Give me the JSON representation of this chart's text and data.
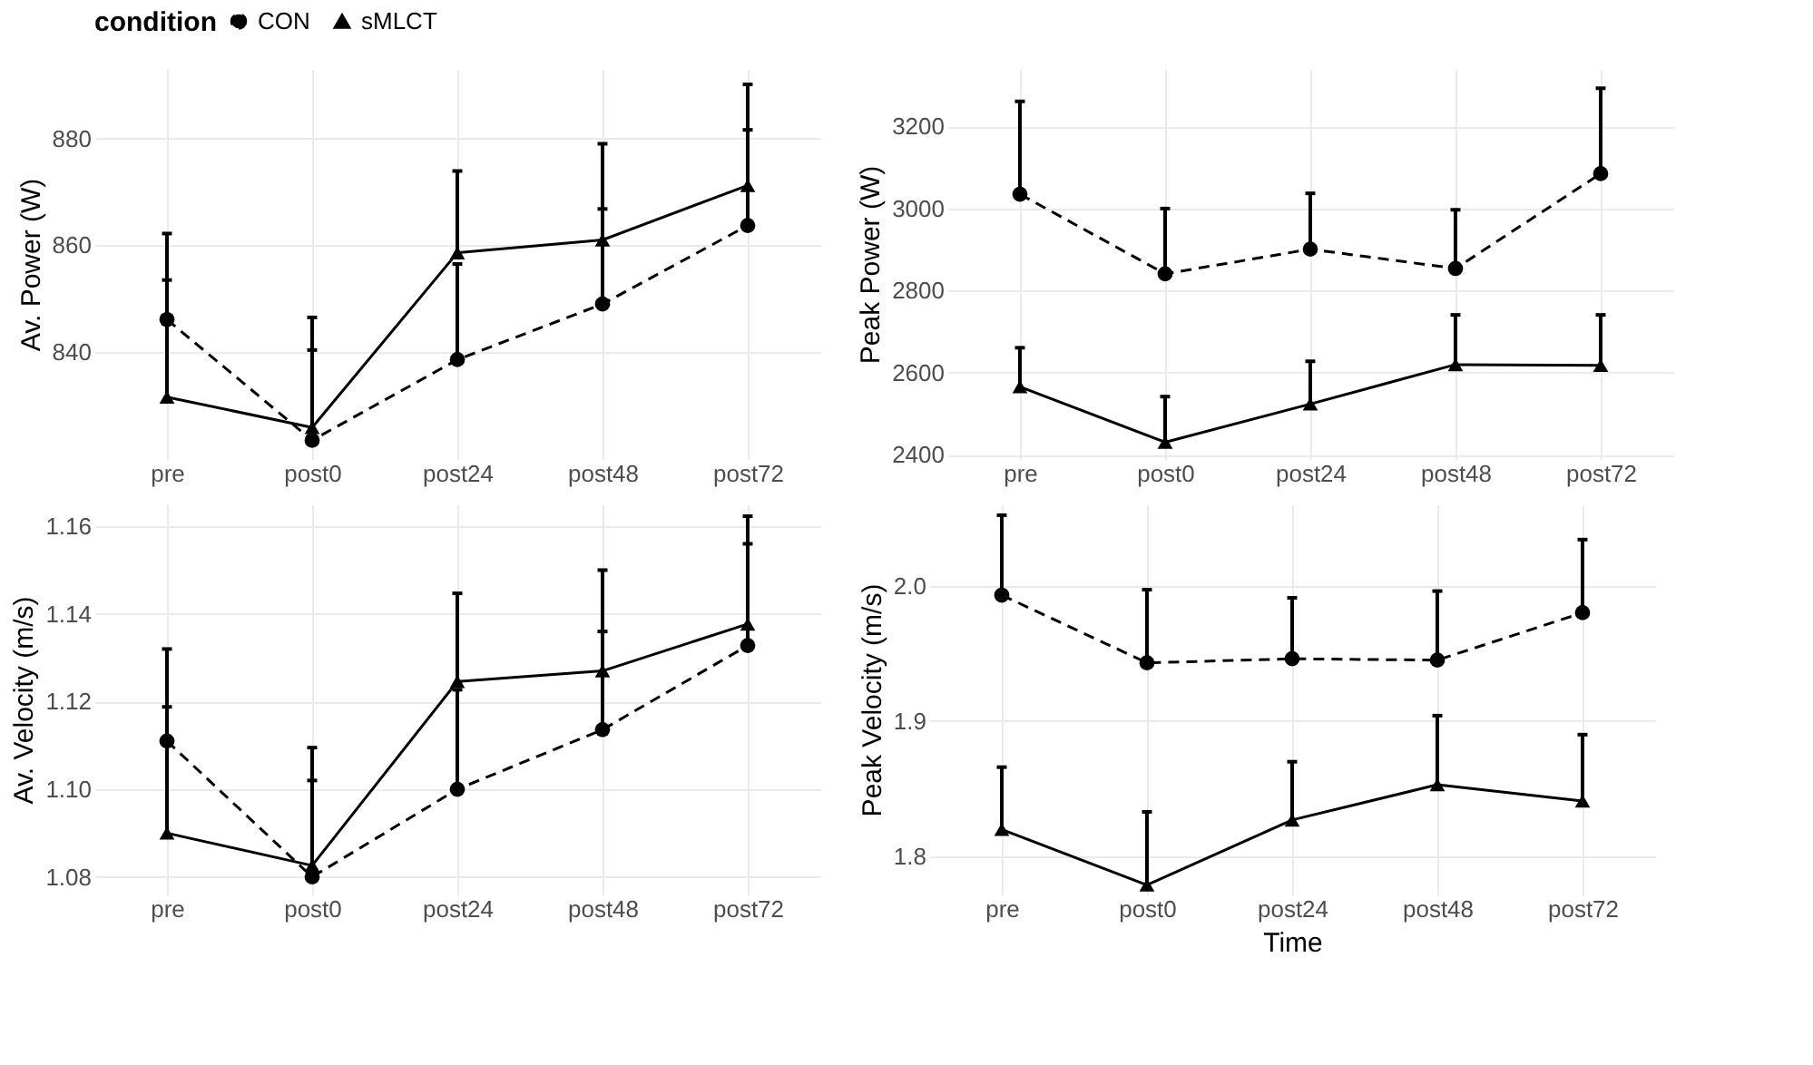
{
  "chart_data": [
    {
      "type": "line",
      "ylabel": "Av. Power (W)",
      "legend_title": "condition",
      "legend": "top",
      "grid": true,
      "categories": [
        "pre",
        "post0",
        "post24",
        "post48",
        "post72"
      ],
      "ylim": [
        820,
        893
      ],
      "yticks": [
        840,
        860,
        880
      ],
      "series": [
        {
          "name": "CON",
          "color": "#000000",
          "marker": "circle",
          "line_style": "dashed",
          "values": [
            846.1,
            823.5,
            838.6,
            849,
            863.7
          ],
          "errors": [
            [
              846.1,
              862.2
            ],
            [
              823.5,
              840.4
            ],
            [
              838.6,
              856.5
            ],
            [
              849,
              866.8
            ],
            [
              863.7,
              881.6
            ]
          ]
        },
        {
          "name": "sMLCT",
          "color": "#000000",
          "marker": "triangle",
          "line_style": "solid",
          "values": [
            831.6,
            825.9,
            858.6,
            861,
            871.2
          ],
          "errors": [
            [
              831.6,
              853.5
            ],
            [
              825.9,
              846.5
            ],
            [
              858.6,
              873.9
            ],
            [
              861,
              879
            ],
            [
              871.2,
              890.1
            ]
          ]
        }
      ]
    },
    {
      "type": "line",
      "ylabel": "Peak Power (W)",
      "grid": true,
      "categories": [
        "pre",
        "post0",
        "post24",
        "post48",
        "post72"
      ],
      "ylim": [
        2390,
        3340
      ],
      "yticks": [
        2400,
        2600,
        2800,
        3000,
        3200
      ],
      "series": [
        {
          "name": "CON",
          "color": "#000000",
          "marker": "circle",
          "line_style": "dashed",
          "values": [
            3035,
            2841,
            2901,
            2854,
            3085
          ],
          "errors": [
            [
              3035,
              3261
            ],
            [
              2841,
              3000
            ],
            [
              2901,
              3037
            ],
            [
              2854,
              2997
            ],
            [
              3085,
              3293
            ]
          ]
        },
        {
          "name": "sMLCT",
          "color": "#000000",
          "marker": "triangle",
          "line_style": "solid",
          "values": [
            2566,
            2431,
            2524,
            2620,
            2618
          ],
          "errors": [
            [
              2566,
              2661
            ],
            [
              2431,
              2542
            ],
            [
              2524,
              2628
            ],
            [
              2620,
              2741
            ],
            [
              2618,
              2741
            ]
          ]
        }
      ]
    },
    {
      "type": "line",
      "ylabel": "Av. Velocity (m/s)",
      "grid": true,
      "categories": [
        "pre",
        "post0",
        "post24",
        "post48",
        "post72"
      ],
      "ylim": [
        1.076,
        1.165
      ],
      "yticks": [
        {
          "value": 1.08,
          "label": "1.08"
        },
        {
          "value": 1.1,
          "label": "1.10"
        },
        {
          "value": 1.12,
          "label": "1.12"
        },
        {
          "value": 1.14,
          "label": "1.14"
        },
        {
          "value": 1.16,
          "label": "1.16"
        }
      ],
      "series": [
        {
          "name": "CON",
          "color": "#000000",
          "marker": "circle",
          "line_style": "dashed",
          "values": [
            1.111,
            1.08,
            1.1,
            1.1136,
            1.1328
          ],
          "errors": [
            [
              1.111,
              1.132
            ],
            [
              1.08,
              1.102
            ],
            [
              1.1,
              1.1227
            ],
            [
              1.1136,
              1.136
            ],
            [
              1.1328,
              1.156
            ]
          ]
        },
        {
          "name": "sMLCT",
          "color": "#000000",
          "marker": "triangle",
          "line_style": "solid",
          "values": [
            1.09,
            1.0826,
            1.1246,
            1.127,
            1.1377
          ],
          "errors": [
            [
              1.09,
              1.1188
            ],
            [
              1.0826,
              1.1095
            ],
            [
              1.1246,
              1.1447
            ],
            [
              1.127,
              1.15
            ],
            [
              1.1377,
              1.1623
            ]
          ]
        }
      ]
    },
    {
      "type": "line",
      "ylabel": "Peak Velocity (m/s)",
      "xlabel": "Time",
      "grid": true,
      "categories": [
        "pre",
        "post0",
        "post24",
        "post48",
        "post72"
      ],
      "ylim": [
        1.772,
        2.06
      ],
      "yticks": [
        {
          "value": 1.8,
          "label": "1.8"
        },
        {
          "value": 1.9,
          "label": "1.9"
        },
        {
          "value": 2.0,
          "label": "2.0"
        }
      ],
      "series": [
        {
          "name": "CON",
          "color": "#000000",
          "marker": "circle",
          "line_style": "dashed",
          "values": [
            1.993,
            1.943,
            1.946,
            1.945,
            1.98
          ],
          "errors": [
            [
              1.993,
              2.052
            ],
            [
              1.943,
              1.997
            ],
            [
              1.946,
              1.991
            ],
            [
              1.945,
              1.996
            ],
            [
              1.98,
              2.034
            ]
          ]
        },
        {
          "name": "sMLCT",
          "color": "#000000",
          "marker": "triangle",
          "line_style": "solid",
          "values": [
            1.82,
            1.779,
            1.827,
            1.853,
            1.841
          ],
          "errors": [
            [
              1.82,
              1.866
            ],
            [
              1.779,
              1.833
            ],
            [
              1.827,
              1.87
            ],
            [
              1.853,
              1.904
            ],
            [
              1.841,
              1.89
            ]
          ]
        }
      ]
    }
  ]
}
